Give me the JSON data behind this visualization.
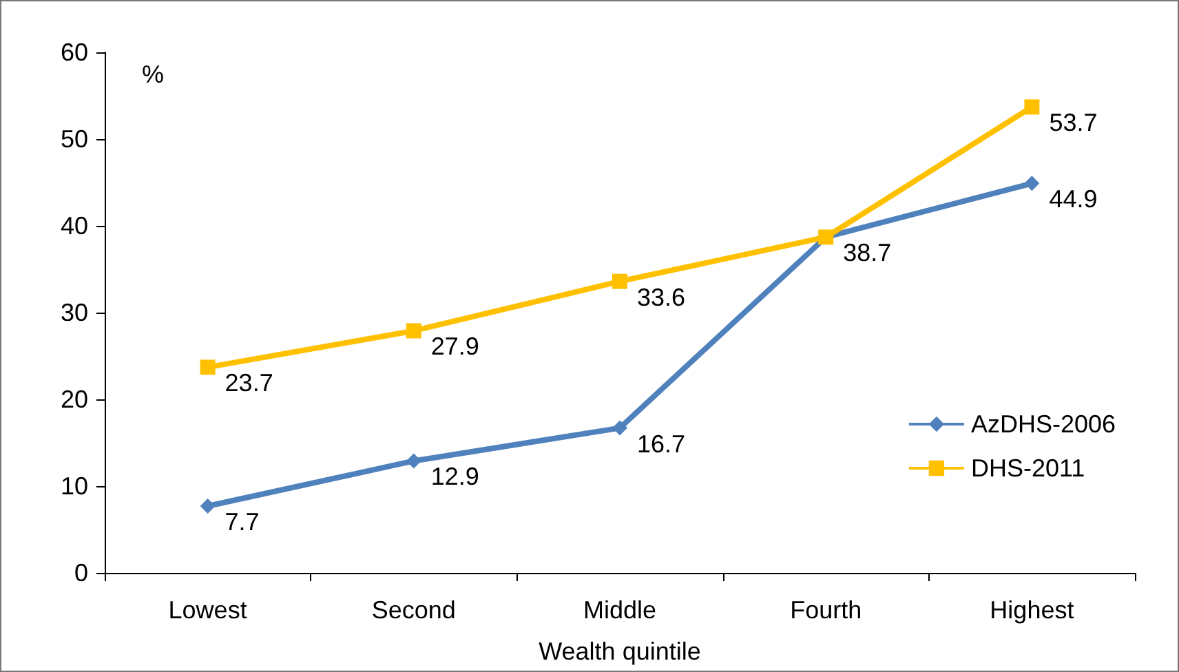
{
  "chart_data": {
    "type": "line",
    "xlabel": "Wealth quintile",
    "ylabel": "%",
    "categories": [
      "Lowest",
      "Second",
      "Middle",
      "Fourth",
      "Highest"
    ],
    "series": [
      {
        "name": "AzDHS-2006",
        "color": "#4f81bd",
        "marker": "diamond",
        "values": [
          7.7,
          12.9,
          16.7,
          38.7,
          44.9
        ],
        "value_labels": [
          "7.7",
          "12.9",
          "16.7",
          "38.7",
          "44.9"
        ]
      },
      {
        "name": "DHS-2011",
        "color": "#ffc000",
        "marker": "square",
        "values": [
          23.7,
          27.9,
          33.6,
          38.7,
          53.7
        ],
        "value_labels": [
          "23.7",
          "27.9",
          "33.6",
          null,
          "53.7"
        ]
      }
    ],
    "ylim": [
      0,
      60
    ],
    "yticks": [
      0,
      10,
      20,
      30,
      40,
      50,
      60
    ],
    "grid": false,
    "legend": "right"
  }
}
